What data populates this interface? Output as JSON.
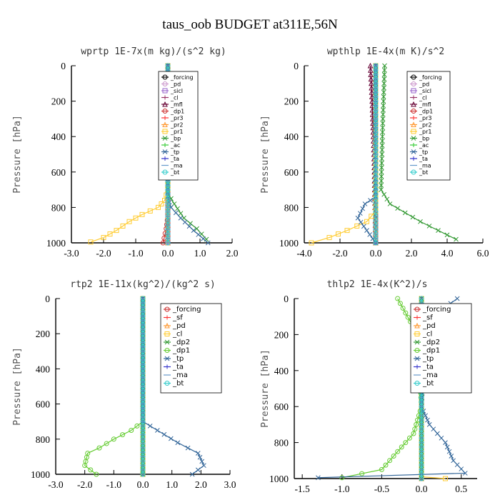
{
  "figure_title": "taus_oob  BUDGET at311E,56N",
  "chart_data": [
    {
      "type": "line",
      "title": "wprtp  1E-7x(m kg)/(s^2 kg)",
      "ylabel": "Pressure [hPa]",
      "xlim": [
        -3.0,
        2.0
      ],
      "ylim": [
        1000,
        0
      ],
      "xticks": [
        "-3.0",
        "-2.0",
        "-1.0",
        "0.0",
        "1.0",
        "2.0"
      ],
      "yticks": [
        "0",
        "200",
        "400",
        "600",
        "800",
        "1000"
      ],
      "legend_position": "top-right",
      "series": [
        {
          "name": "_forcing",
          "color": "#000000",
          "marker": "o",
          "points": [
            [
              0,
              0
            ],
            [
              0,
              1000
            ]
          ]
        },
        {
          "name": "_pd",
          "color": "#cc99cc",
          "marker": "o",
          "points": [
            [
              0,
              0
            ],
            [
              0,
              1000
            ]
          ]
        },
        {
          "name": "_sicl",
          "color": "#9966cc",
          "marker": "s",
          "points": [
            [
              0,
              0
            ],
            [
              0,
              1000
            ]
          ]
        },
        {
          "name": "_cl",
          "color": "#993366",
          "marker": "+",
          "points": [
            [
              0,
              0
            ],
            [
              0,
              1000
            ]
          ]
        },
        {
          "name": "_mfl",
          "color": "#660033",
          "marker": "^",
          "points": [
            [
              0,
              0
            ],
            [
              0,
              1000
            ]
          ]
        },
        {
          "name": "_dp1",
          "color": "#cc3333",
          "marker": "o",
          "points": [
            [
              0,
              0
            ],
            [
              0,
              850
            ],
            [
              -0.05,
              920
            ],
            [
              -0.15,
              1000
            ]
          ]
        },
        {
          "name": "_pr3",
          "color": "#ff3333",
          "marker": "+",
          "points": [
            [
              0,
              0
            ],
            [
              0,
              1000
            ]
          ]
        },
        {
          "name": "_pr2",
          "color": "#ff9933",
          "marker": "^",
          "points": [
            [
              0,
              0
            ],
            [
              0,
              1000
            ]
          ]
        },
        {
          "name": "_pr1",
          "color": "#ffcc33",
          "marker": "s",
          "points": [
            [
              0,
              0
            ],
            [
              0,
              700
            ],
            [
              -0.1,
              760
            ],
            [
              -0.3,
              800
            ],
            [
              -0.8,
              840
            ],
            [
              -1.2,
              880
            ],
            [
              -1.6,
              930
            ],
            [
              -2.0,
              970
            ],
            [
              -2.4,
              995
            ]
          ]
        },
        {
          "name": "_bp",
          "color": "#339933",
          "marker": "x",
          "points": [
            [
              0,
              0
            ],
            [
              0,
              720
            ],
            [
              0.2,
              780
            ],
            [
              0.5,
              860
            ],
            [
              0.9,
              920
            ],
            [
              1.2,
              980
            ]
          ]
        },
        {
          "name": "_ac",
          "color": "#33cc33",
          "marker": "+",
          "points": [
            [
              0,
              0
            ],
            [
              0,
              1000
            ]
          ]
        },
        {
          "name": "_tp",
          "color": "#336699",
          "marker": "x",
          "points": [
            [
              0,
              0
            ],
            [
              0,
              740
            ],
            [
              0.1,
              800
            ],
            [
              0.4,
              860
            ],
            [
              0.8,
              930
            ],
            [
              1.25,
              1000
            ]
          ]
        },
        {
          "name": "_ta",
          "color": "#3333cc",
          "marker": "+",
          "points": [
            [
              0,
              0
            ],
            [
              0,
              1000
            ]
          ]
        },
        {
          "name": "_ma",
          "color": "#6699cc",
          "marker": "-",
          "points": [
            [
              0,
              0
            ],
            [
              0,
              1000
            ]
          ]
        },
        {
          "name": "_bt",
          "color": "#33cccc",
          "marker": "o",
          "points": [
            [
              0,
              0
            ],
            [
              0,
              1000
            ]
          ]
        }
      ]
    },
    {
      "type": "line",
      "title": "wpthlp  1E-4x(m K)/s^2",
      "ylabel": "Pressure [hPa]",
      "xlim": [
        -4.0,
        6.0
      ],
      "ylim": [
        1000,
        0
      ],
      "xticks": [
        "-4.0",
        "-2.0",
        "0.0",
        "2.0",
        "4.0",
        "6.0"
      ],
      "yticks": [
        "0",
        "200",
        "400",
        "600",
        "800",
        "1000"
      ],
      "legend_position": "top-right",
      "series": [
        {
          "name": "_forcing",
          "color": "#000000",
          "marker": "o",
          "points": [
            [
              0,
              0
            ],
            [
              0,
              1000
            ]
          ]
        },
        {
          "name": "_pd",
          "color": "#cc99cc",
          "marker": "o",
          "points": [
            [
              0,
              0
            ],
            [
              0,
              1000
            ]
          ]
        },
        {
          "name": "_sicl",
          "color": "#9966cc",
          "marker": "s",
          "points": [
            [
              0,
              0
            ],
            [
              0,
              1000
            ]
          ]
        },
        {
          "name": "_cl",
          "color": "#993366",
          "marker": "+",
          "points": [
            [
              0,
              0
            ],
            [
              0,
              1000
            ]
          ]
        },
        {
          "name": "_mfl",
          "color": "#660033",
          "marker": "^",
          "points": [
            [
              -0.3,
              0
            ],
            [
              -0.2,
              200
            ],
            [
              -0.1,
              500
            ],
            [
              0,
              1000
            ]
          ]
        },
        {
          "name": "_dp1",
          "color": "#cc3333",
          "marker": "o",
          "points": [
            [
              0,
              0
            ],
            [
              0,
              1000
            ]
          ]
        },
        {
          "name": "_pr3",
          "color": "#ff3333",
          "marker": "+",
          "points": [
            [
              0,
              0
            ],
            [
              0,
              1000
            ]
          ]
        },
        {
          "name": "_pr2",
          "color": "#ff9933",
          "marker": "^",
          "points": [
            [
              0,
              0
            ],
            [
              0,
              1000
            ]
          ]
        },
        {
          "name": "_pr1",
          "color": "#ffcc33",
          "marker": "s",
          "points": [
            [
              0,
              0
            ],
            [
              0,
              820
            ],
            [
              -0.5,
              880
            ],
            [
              -1.6,
              930
            ],
            [
              -2.6,
              970
            ],
            [
              -3.6,
              1000
            ]
          ]
        },
        {
          "name": "_bp",
          "color": "#339933",
          "marker": "x",
          "points": [
            [
              0.5,
              0
            ],
            [
              0.4,
              300
            ],
            [
              0.3,
              700
            ],
            [
              0.8,
              780
            ],
            [
              2.5,
              880
            ],
            [
              4.5,
              980
            ]
          ]
        },
        {
          "name": "_ac",
          "color": "#33cc33",
          "marker": "+",
          "points": [
            [
              0,
              0
            ],
            [
              0,
              1000
            ]
          ]
        },
        {
          "name": "_tp",
          "color": "#336699",
          "marker": "x",
          "points": [
            [
              0,
              0
            ],
            [
              0,
              740
            ],
            [
              -0.6,
              780
            ],
            [
              -1.0,
              860
            ],
            [
              -0.5,
              930
            ],
            [
              0,
              1000
            ]
          ]
        },
        {
          "name": "_ta",
          "color": "#3333cc",
          "marker": "+",
          "points": [
            [
              0,
              0
            ],
            [
              0,
              1000
            ]
          ]
        },
        {
          "name": "_ma",
          "color": "#6699cc",
          "marker": "-",
          "points": [
            [
              0,
              0
            ],
            [
              0,
              1000
            ]
          ]
        },
        {
          "name": "_bt",
          "color": "#33cccc",
          "marker": "o",
          "points": [
            [
              0,
              0
            ],
            [
              0,
              1000
            ]
          ]
        }
      ]
    },
    {
      "type": "line",
      "title": "rtp2  1E-11x(kg^2)/(kg^2 s)",
      "ylabel": "Pressure [hPa]",
      "xlim": [
        -3.0,
        3.0
      ],
      "ylim": [
        1000,
        0
      ],
      "xticks": [
        "-3.0",
        "-2.0",
        "-1.0",
        "0.0",
        "1.0",
        "2.0",
        "3.0"
      ],
      "yticks": [
        "0",
        "200",
        "400",
        "600",
        "800",
        "1000"
      ],
      "legend_position": "top-right",
      "series": [
        {
          "name": "_forcing",
          "color": "#cc3333",
          "marker": "o",
          "points": [
            [
              0,
              0
            ],
            [
              0,
              1000
            ]
          ]
        },
        {
          "name": "_sf",
          "color": "#ff3333",
          "marker": "+",
          "points": [
            [
              0,
              0
            ],
            [
              0,
              1000
            ]
          ]
        },
        {
          "name": "_pd",
          "color": "#ff9933",
          "marker": "^",
          "points": [
            [
              0,
              0
            ],
            [
              0,
              1000
            ]
          ]
        },
        {
          "name": "_cl",
          "color": "#ffcc33",
          "marker": "s",
          "points": [
            [
              0,
              0
            ],
            [
              0,
              1000
            ]
          ]
        },
        {
          "name": "_dp2",
          "color": "#339933",
          "marker": "x",
          "points": [
            [
              0,
              0
            ],
            [
              0,
              1000
            ]
          ]
        },
        {
          "name": "_dp1",
          "color": "#66cc33",
          "marker": "o",
          "points": [
            [
              0,
              0
            ],
            [
              0,
              700
            ],
            [
              -0.4,
              750
            ],
            [
              -1.0,
              800
            ],
            [
              -1.5,
              850
            ],
            [
              -1.9,
              880
            ],
            [
              -2.0,
              950
            ],
            [
              -1.6,
              1000
            ]
          ]
        },
        {
          "name": "_tp",
          "color": "#336699",
          "marker": "x",
          "points": [
            [
              0,
              0
            ],
            [
              0,
              700
            ],
            [
              0.5,
              750
            ],
            [
              1.2,
              820
            ],
            [
              1.9,
              880
            ],
            [
              2.1,
              950
            ],
            [
              1.7,
              1000
            ]
          ]
        },
        {
          "name": "_ta",
          "color": "#3333cc",
          "marker": "+",
          "points": [
            [
              0,
              0
            ],
            [
              0,
              1000
            ]
          ]
        },
        {
          "name": "_ma",
          "color": "#6699cc",
          "marker": "-",
          "points": [
            [
              0,
              0
            ],
            [
              0,
              1000
            ]
          ]
        },
        {
          "name": "_bt",
          "color": "#33cccc",
          "marker": "o",
          "points": [
            [
              0,
              0
            ],
            [
              0,
              1000
            ]
          ]
        }
      ]
    },
    {
      "type": "line",
      "title": "thlp2  1E-4x(K^2)/s",
      "ylabel": "Pressure [hPa]",
      "xlim": [
        -1.6,
        0.7
      ],
      "ylim": [
        1000,
        0
      ],
      "xticks": [
        "-1.5",
        "-1.0",
        "-0.5",
        "0.0",
        "0.5"
      ],
      "yticks": [
        "0",
        "200",
        "400",
        "600",
        "800",
        "1000"
      ],
      "legend_position": "top-right",
      "series": [
        {
          "name": "_forcing",
          "color": "#cc3333",
          "marker": "o",
          "points": [
            [
              0,
              0
            ],
            [
              0,
              1000
            ]
          ]
        },
        {
          "name": "_sf",
          "color": "#ff3333",
          "marker": "+",
          "points": [
            [
              0,
              0
            ],
            [
              0,
              1000
            ]
          ]
        },
        {
          "name": "_pd",
          "color": "#ff9933",
          "marker": "^",
          "points": [
            [
              0,
              0
            ],
            [
              0,
              1000
            ]
          ]
        },
        {
          "name": "_cl",
          "color": "#ffcc33",
          "marker": "s",
          "points": [
            [
              0,
              0
            ],
            [
              0,
              990
            ],
            [
              0.3,
              1000
            ]
          ]
        },
        {
          "name": "_dp2",
          "color": "#339933",
          "marker": "x",
          "points": [
            [
              0,
              0
            ],
            [
              0,
              1000
            ]
          ]
        },
        {
          "name": "_dp1",
          "color": "#66cc33",
          "marker": "o",
          "points": [
            [
              -0.3,
              0
            ],
            [
              -0.2,
              80
            ],
            [
              -0.05,
              200
            ],
            [
              0,
              600
            ],
            [
              -0.1,
              750
            ],
            [
              -0.3,
              850
            ],
            [
              -0.5,
              950
            ],
            [
              -1.0,
              995
            ]
          ]
        },
        {
          "name": "_tp",
          "color": "#336699",
          "marker": "x",
          "points": [
            [
              0.45,
              0
            ],
            [
              0.2,
              80
            ],
            [
              0.05,
              200
            ],
            [
              0,
              600
            ],
            [
              0.1,
              700
            ],
            [
              0.3,
              800
            ],
            [
              0.4,
              900
            ],
            [
              0.55,
              970
            ],
            [
              -1.3,
              995
            ]
          ]
        },
        {
          "name": "_ta",
          "color": "#3333cc",
          "marker": "+",
          "points": [
            [
              0,
              0
            ],
            [
              0,
              1000
            ]
          ]
        },
        {
          "name": "_ma",
          "color": "#6699cc",
          "marker": "-",
          "points": [
            [
              0,
              0
            ],
            [
              0,
              1000
            ]
          ]
        },
        {
          "name": "_bt",
          "color": "#33cccc",
          "marker": "o",
          "points": [
            [
              0,
              0
            ],
            [
              0,
              1000
            ]
          ]
        }
      ]
    }
  ]
}
